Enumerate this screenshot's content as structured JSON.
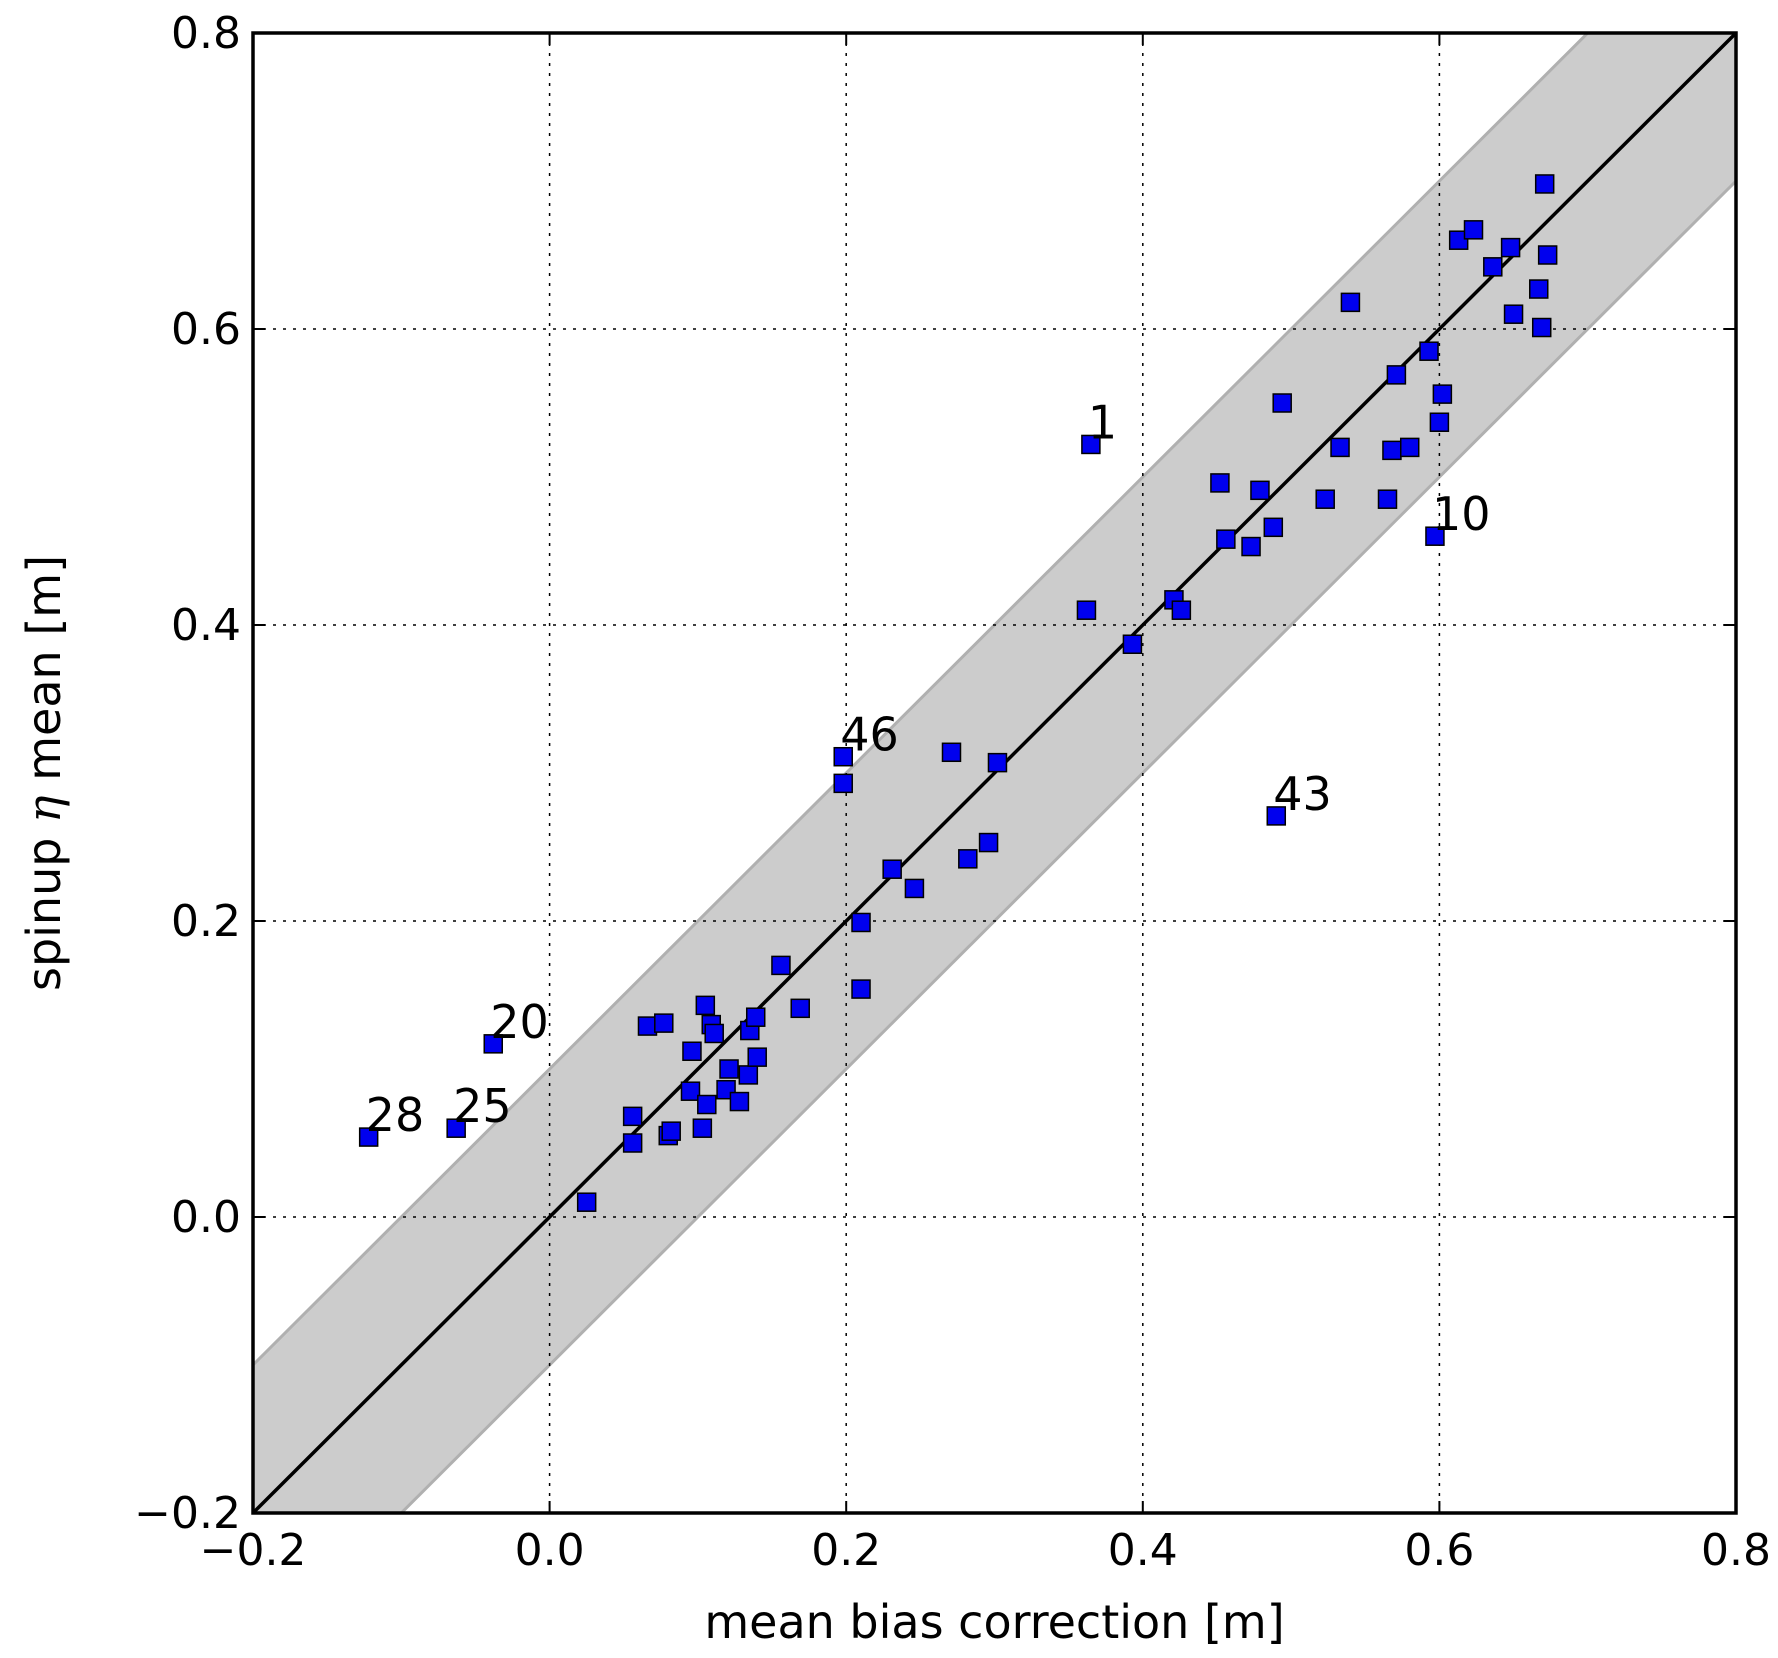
{
  "chart_data": {
    "type": "scatter",
    "title": "",
    "xlabel": "mean bias correction [m]",
    "ylabel_prefix": "spinup ",
    "ylabel_symbol": "η",
    "ylabel_suffix": " mean [m]",
    "xlim": [
      -0.2,
      0.8
    ],
    "ylim": [
      -0.2,
      0.8
    ],
    "xticks": [
      -0.2,
      0.0,
      0.2,
      0.4,
      0.6,
      0.8
    ],
    "yticks": [
      -0.2,
      0.0,
      0.2,
      0.4,
      0.6,
      0.8
    ],
    "xtick_labels": [
      "−0.2",
      "0.0",
      "0.2",
      "0.4",
      "0.6",
      "0.8"
    ],
    "ytick_labels": [
      "−0.2",
      "0.0",
      "0.2",
      "0.4",
      "0.6",
      "0.8"
    ],
    "grid": true,
    "identity_line": true,
    "band_halfwidth": 0.1,
    "colors": {
      "marker_fill": "#0000ee",
      "marker_edge": "#000000",
      "band_fill": "#cccccc",
      "band_edge": "#b0b0b0",
      "line": "#000000",
      "grid": "#000000"
    },
    "points": [
      [
        -0.122,
        0.054
      ],
      [
        -0.063,
        0.06
      ],
      [
        -0.038,
        0.117
      ],
      [
        0.025,
        0.01
      ],
      [
        0.056,
        0.05
      ],
      [
        0.056,
        0.068
      ],
      [
        0.066,
        0.129
      ],
      [
        0.077,
        0.131
      ],
      [
        0.08,
        0.055
      ],
      [
        0.082,
        0.058
      ],
      [
        0.095,
        0.085
      ],
      [
        0.096,
        0.112
      ],
      [
        0.103,
        0.06
      ],
      [
        0.105,
        0.143
      ],
      [
        0.106,
        0.076
      ],
      [
        0.109,
        0.13
      ],
      [
        0.111,
        0.124
      ],
      [
        0.119,
        0.086
      ],
      [
        0.121,
        0.1
      ],
      [
        0.128,
        0.078
      ],
      [
        0.134,
        0.096
      ],
      [
        0.135,
        0.126
      ],
      [
        0.139,
        0.135
      ],
      [
        0.14,
        0.108
      ],
      [
        0.156,
        0.17
      ],
      [
        0.169,
        0.141
      ],
      [
        0.198,
        0.311
      ],
      [
        0.198,
        0.293
      ],
      [
        0.21,
        0.199
      ],
      [
        0.21,
        0.154
      ],
      [
        0.231,
        0.235
      ],
      [
        0.246,
        0.222
      ],
      [
        0.271,
        0.314
      ],
      [
        0.282,
        0.242
      ],
      [
        0.296,
        0.253
      ],
      [
        0.302,
        0.307
      ],
      [
        0.362,
        0.41
      ],
      [
        0.365,
        0.522
      ],
      [
        0.393,
        0.387
      ],
      [
        0.421,
        0.417
      ],
      [
        0.426,
        0.41
      ],
      [
        0.452,
        0.496
      ],
      [
        0.456,
        0.458
      ],
      [
        0.473,
        0.453
      ],
      [
        0.479,
        0.491
      ],
      [
        0.488,
        0.466
      ],
      [
        0.49,
        0.271
      ],
      [
        0.494,
        0.55
      ],
      [
        0.523,
        0.485
      ],
      [
        0.533,
        0.52
      ],
      [
        0.54,
        0.618
      ],
      [
        0.565,
        0.485
      ],
      [
        0.568,
        0.518
      ],
      [
        0.571,
        0.569
      ],
      [
        0.58,
        0.52
      ],
      [
        0.593,
        0.585
      ],
      [
        0.597,
        0.46
      ],
      [
        0.6,
        0.537
      ],
      [
        0.602,
        0.556
      ],
      [
        0.613,
        0.66
      ],
      [
        0.623,
        0.667
      ],
      [
        0.636,
        0.642
      ],
      [
        0.648,
        0.655
      ],
      [
        0.65,
        0.61
      ],
      [
        0.667,
        0.627
      ],
      [
        0.669,
        0.601
      ],
      [
        0.671,
        0.698
      ],
      [
        0.673,
        0.65
      ]
    ],
    "annotations": [
      {
        "text": "1",
        "x": 0.365,
        "y": 0.522
      },
      {
        "text": "10",
        "x": 0.597,
        "y": 0.46
      },
      {
        "text": "46",
        "x": 0.198,
        "y": 0.311
      },
      {
        "text": "43",
        "x": 0.49,
        "y": 0.271
      },
      {
        "text": "20",
        "x": -0.038,
        "y": 0.117
      },
      {
        "text": "28",
        "x": -0.122,
        "y": 0.054
      },
      {
        "text": "25",
        "x": -0.063,
        "y": 0.06
      }
    ]
  }
}
